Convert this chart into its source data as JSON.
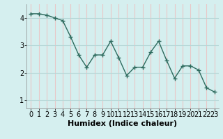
{
  "x": [
    0,
    1,
    2,
    3,
    4,
    5,
    6,
    7,
    8,
    9,
    10,
    11,
    12,
    13,
    14,
    15,
    16,
    17,
    18,
    19,
    20,
    21,
    22,
    23
  ],
  "y": [
    4.15,
    4.15,
    4.1,
    4.0,
    3.9,
    3.3,
    2.65,
    2.2,
    2.65,
    2.65,
    3.15,
    2.55,
    1.9,
    2.2,
    2.2,
    2.75,
    3.15,
    2.45,
    1.8,
    2.25,
    2.25,
    2.1,
    1.45,
    1.3
  ],
  "line_color": "#2e6b5e",
  "marker": "+",
  "marker_size": 5,
  "bg_color": "#d5efef",
  "vgrid_color": "#e8c8c8",
  "hgrid_color": "#b8d8d8",
  "xlabel": "Humidex (Indice chaleur)",
  "yticks": [
    1,
    2,
    3,
    4
  ],
  "xticks": [
    0,
    1,
    2,
    3,
    4,
    5,
    6,
    7,
    8,
    9,
    10,
    11,
    12,
    13,
    14,
    15,
    16,
    17,
    18,
    19,
    20,
    21,
    22,
    23
  ],
  "ylim": [
    0.7,
    4.5
  ],
  "xlim": [
    -0.5,
    23.5
  ],
  "xlabel_fontsize": 8,
  "tick_fontsize": 7,
  "linewidth": 1.0
}
